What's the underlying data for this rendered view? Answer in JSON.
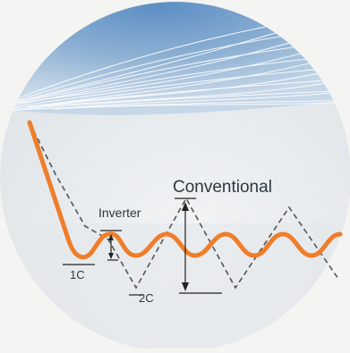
{
  "diagram": {
    "labels": {
      "conventional": "Conventional",
      "inverter": "Inverter",
      "one_c": "1C",
      "two_c": "2C"
    },
    "colors": {
      "page_background": "#f4f4f2",
      "circle_background": "#e9ecee",
      "sky_gradient_top": "#5d8ec4",
      "sky_gradient_bottom": "#b7cde2",
      "inverter_curve": "#ef7d2a",
      "conventional_curve": "#555555",
      "annotation_lines": "#222222"
    }
  }
}
